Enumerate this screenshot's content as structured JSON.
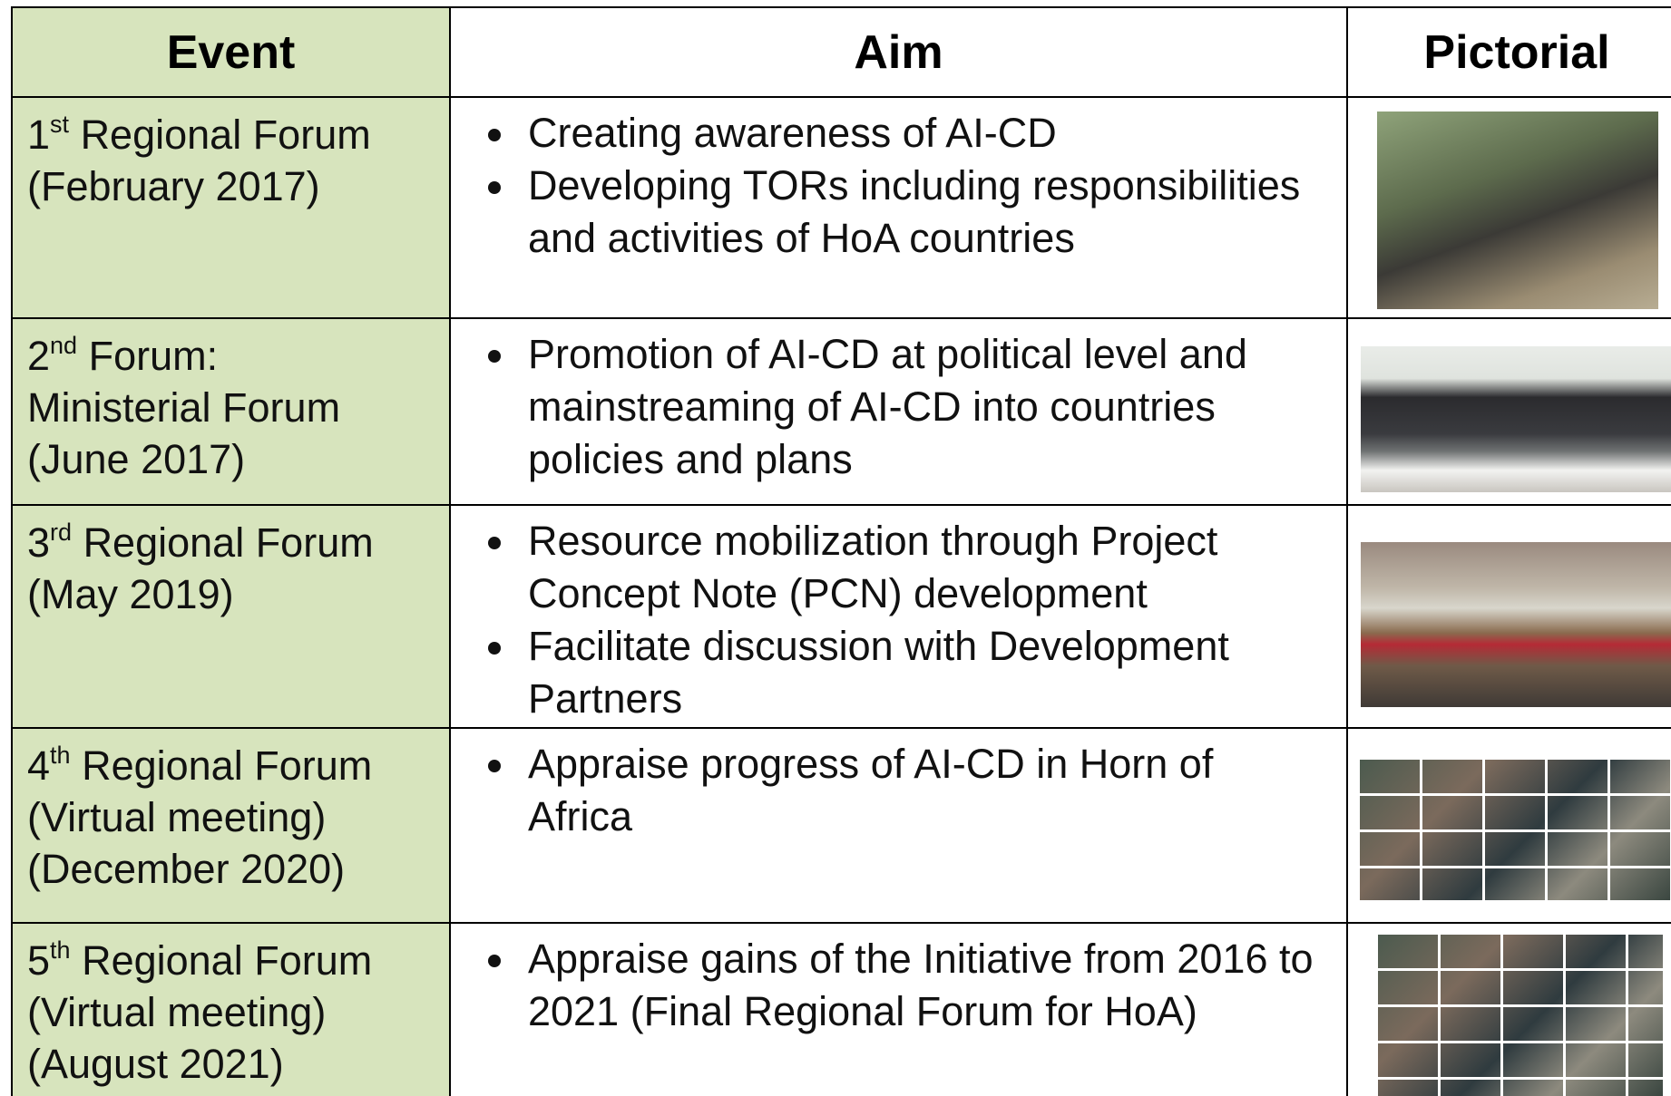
{
  "table": {
    "headers": [
      "Event",
      "Aim",
      "Pictorial"
    ],
    "rows": [
      {
        "number": "1",
        "suffix": "st",
        "title": "Regional Forum",
        "lines": [
          "(February 2017)"
        ],
        "aims": [
          "Creating awareness of  AI-CD",
          "Developing TORs including responsibilities and activities of HoA countries"
        ]
      },
      {
        "number": "2",
        "suffix": "nd",
        "title": "Forum:",
        "lines": [
          "Ministerial Forum",
          "(June 2017)"
        ],
        "aims": [
          "Promotion of AI-CD at political level and mainstreaming of AI-CD into countries policies and plans"
        ]
      },
      {
        "number": "3",
        "suffix": "rd",
        "title": "Regional Forum",
        "lines": [
          "(May 2019)"
        ],
        "aims": [
          "Resource mobilization through Project Concept Note (PCN) development",
          "Facilitate discussion with Development Partners"
        ]
      },
      {
        "number": "4",
        "suffix": "th",
        "title": "Regional Forum",
        "lines": [
          "(Virtual meeting)",
          "(December 2020)"
        ],
        "aims": [
          "Appraise progress of AI-CD in Horn of Africa"
        ]
      },
      {
        "number": "5",
        "suffix": "th",
        "title": "Regional Forum",
        "lines": [
          "(Virtual meeting)",
          "(August 2021)"
        ],
        "aims": [
          "Appraise gains of the Initiative from 2016 to 2021 (Final Regional Forum for HoA)"
        ]
      }
    ]
  }
}
